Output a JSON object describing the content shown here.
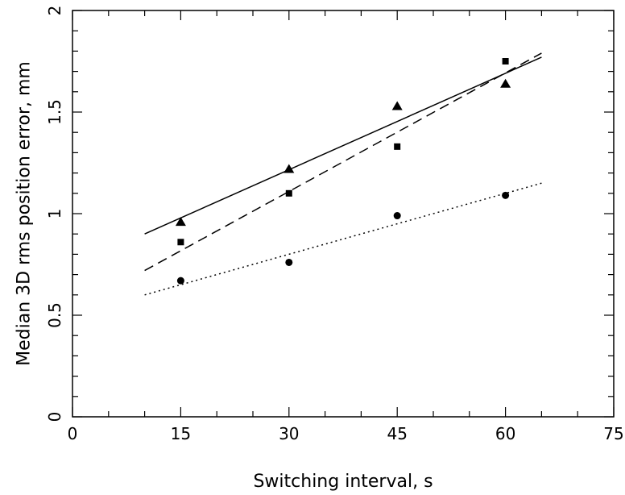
{
  "chart_data": {
    "type": "scatter",
    "title": "",
    "xlabel": "Switching interval, s",
    "ylabel": "Median 3D rms position error, mm",
    "xlim": [
      0,
      75
    ],
    "ylim": [
      0,
      2
    ],
    "x_ticks": [
      0,
      15,
      30,
      45,
      60,
      75
    ],
    "x_tick_labels": [
      "0",
      "15",
      "30",
      "45",
      "60",
      "75"
    ],
    "y_ticks": [
      0,
      0.5,
      1,
      1.5,
      2
    ],
    "y_tick_labels": [
      "0",
      "0.5",
      "1",
      "1.5",
      "2"
    ],
    "x_minor_step": 5,
    "y_minor_step": 0.1,
    "grid": false,
    "legend": "none",
    "series": [
      {
        "marker": "triangle",
        "color": "#000000",
        "points": [
          [
            15,
            0.96
          ],
          [
            30,
            1.22
          ],
          [
            45,
            1.53
          ],
          [
            60,
            1.64
          ]
        ],
        "fit": {
          "style": "solid",
          "x": [
            10,
            65
          ],
          "y": [
            0.9,
            1.77
          ]
        }
      },
      {
        "marker": "square",
        "color": "#000000",
        "points": [
          [
            15,
            0.86
          ],
          [
            30,
            1.1
          ],
          [
            45,
            1.33
          ],
          [
            60,
            1.75
          ]
        ],
        "fit": {
          "style": "dashed",
          "x": [
            10,
            65
          ],
          "y": [
            0.72,
            1.79
          ]
        }
      },
      {
        "marker": "circle",
        "color": "#000000",
        "points": [
          [
            15,
            0.67
          ],
          [
            30,
            0.76
          ],
          [
            45,
            0.99
          ],
          [
            60,
            1.09
          ]
        ],
        "fit": {
          "style": "dotted",
          "x": [
            10,
            65
          ],
          "y": [
            0.6,
            1.15
          ]
        }
      }
    ]
  }
}
